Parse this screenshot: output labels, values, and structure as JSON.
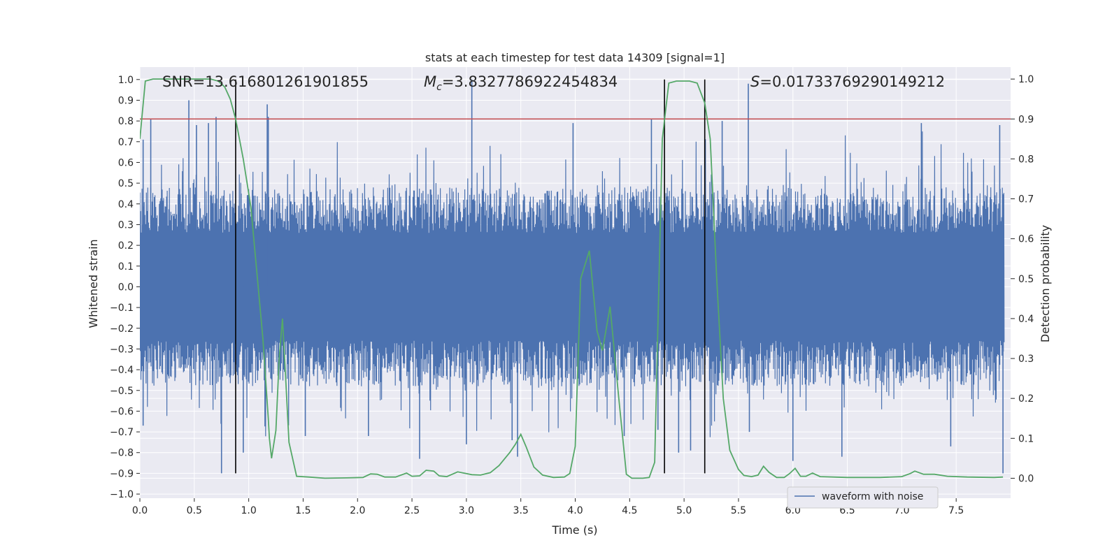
{
  "chart_data": {
    "type": "line",
    "title": "stats at each timestep for test data 14309 [signal=1]",
    "xlabel": "Time (s)",
    "ylabel": "Whitened strain",
    "y2label": "Detection probability",
    "xlim": [
      0.0,
      8.0
    ],
    "ylim": [
      -1.02,
      1.06
    ],
    "y2lim": [
      -0.05,
      1.03
    ],
    "xticks": [
      "0.0",
      "0.5",
      "1.0",
      "1.5",
      "2.0",
      "2.5",
      "3.0",
      "3.5",
      "4.0",
      "4.5",
      "5.0",
      "5.5",
      "6.0",
      "6.5",
      "7.0",
      "7.5"
    ],
    "xtick_values": [
      0.0,
      0.5,
      1.0,
      1.5,
      2.0,
      2.5,
      3.0,
      3.5,
      4.0,
      4.5,
      5.0,
      5.5,
      6.0,
      6.5,
      7.0,
      7.5
    ],
    "yticks": [
      "1.0",
      "0.9",
      "0.8",
      "0.7",
      "0.6",
      "0.5",
      "0.4",
      "0.3",
      "0.2",
      "0.1",
      "0.0",
      "−0.1",
      "−0.2",
      "−0.3",
      "−0.4",
      "−0.5",
      "−0.6",
      "−0.7",
      "−0.8",
      "−0.9",
      "−1.0"
    ],
    "ytick_values": [
      1.0,
      0.9,
      0.8,
      0.7,
      0.6,
      0.5,
      0.4,
      0.3,
      0.2,
      0.1,
      0.0,
      -0.1,
      -0.2,
      -0.3,
      -0.4,
      -0.5,
      -0.6,
      -0.7,
      -0.8,
      -0.9,
      -1.0
    ],
    "y2ticks": [
      "1.0",
      "0.9",
      "0.8",
      "0.7",
      "0.6",
      "0.5",
      "0.4",
      "0.3",
      "0.2",
      "0.1",
      "0.0"
    ],
    "y2tick_values": [
      1.0,
      0.9,
      0.8,
      0.7,
      0.6,
      0.5,
      0.4,
      0.3,
      0.2,
      0.1,
      0.0
    ],
    "grid": true,
    "legend": {
      "placement": "lower right",
      "label": "waveform with noise"
    },
    "annotations": {
      "snr": "SNR=13.616801261901855",
      "mc_symbol": "M",
      "mc_sub": "c",
      "mc_value": "=3.8327786922454834",
      "s_symbol": "S",
      "s_value": "=0.01733769290149212"
    },
    "threshold": {
      "value": 0.9,
      "axis": "right",
      "color": "#c44e52"
    },
    "vlines": [
      0.88,
      4.82,
      5.19
    ],
    "colors": {
      "waveform": "#4c72b0",
      "probability": "#55a868",
      "vline": "#000000",
      "background": "#eaeaf2"
    },
    "waveform_spikes": [
      {
        "t": 0.03,
        "v": 0.71
      },
      {
        "t": 0.03,
        "v": -0.67
      },
      {
        "t": 0.1,
        "v": 0.81
      },
      {
        "t": 0.45,
        "v": 0.9
      },
      {
        "t": 0.52,
        "v": 0.78
      },
      {
        "t": 0.63,
        "v": 0.79
      },
      {
        "t": 0.7,
        "v": 0.82
      },
      {
        "t": 0.75,
        "v": -0.9
      },
      {
        "t": 0.93,
        "v": 0.45
      },
      {
        "t": 0.95,
        "v": -0.8
      },
      {
        "t": 1.17,
        "v": 0.88
      },
      {
        "t": 1.18,
        "v": 0.82
      },
      {
        "t": 1.52,
        "v": -0.72
      },
      {
        "t": 2.1,
        "v": -0.72
      },
      {
        "t": 2.57,
        "v": -0.83
      },
      {
        "t": 3.0,
        "v": -0.76
      },
      {
        "t": 3.05,
        "v": 1.0
      },
      {
        "t": 3.42,
        "v": -0.74
      },
      {
        "t": 3.47,
        "v": -0.82
      },
      {
        "t": 3.98,
        "v": 0.79
      },
      {
        "t": 4.45,
        "v": -0.72
      },
      {
        "t": 4.7,
        "v": 0.81
      },
      {
        "t": 4.76,
        "v": -0.69
      },
      {
        "t": 4.95,
        "v": -0.8
      },
      {
        "t": 5.06,
        "v": -0.79
      },
      {
        "t": 5.35,
        "v": 0.8
      },
      {
        "t": 5.59,
        "v": 0.98
      },
      {
        "t": 5.6,
        "v": -0.7
      },
      {
        "t": 6.0,
        "v": -0.84
      },
      {
        "t": 6.45,
        "v": -0.82
      },
      {
        "t": 7.18,
        "v": 0.79
      },
      {
        "t": 7.45,
        "v": -0.77
      },
      {
        "t": 7.9,
        "v": 0.78
      },
      {
        "t": 7.93,
        "v": -0.9
      }
    ],
    "probability": [
      {
        "t": 0.0,
        "p": 0.85
      },
      {
        "t": 0.05,
        "p": 0.995
      },
      {
        "t": 0.12,
        "p": 1.0
      },
      {
        "t": 0.3,
        "p": 1.0
      },
      {
        "t": 0.5,
        "p": 1.0
      },
      {
        "t": 0.65,
        "p": 1.0
      },
      {
        "t": 0.72,
        "p": 0.995
      },
      {
        "t": 0.78,
        "p": 0.98
      },
      {
        "t": 0.83,
        "p": 0.95
      },
      {
        "t": 0.88,
        "p": 0.9
      },
      {
        "t": 0.95,
        "p": 0.8
      },
      {
        "t": 1.02,
        "p": 0.68
      },
      {
        "t": 1.08,
        "p": 0.5
      },
      {
        "t": 1.13,
        "p": 0.35
      },
      {
        "t": 1.18,
        "p": 0.15
      },
      {
        "t": 1.19,
        "p": 0.1
      },
      {
        "t": 1.21,
        "p": 0.05
      },
      {
        "t": 1.25,
        "p": 0.12
      },
      {
        "t": 1.28,
        "p": 0.3
      },
      {
        "t": 1.31,
        "p": 0.4
      },
      {
        "t": 1.33,
        "p": 0.3
      },
      {
        "t": 1.37,
        "p": 0.09
      },
      {
        "t": 1.44,
        "p": 0.005
      },
      {
        "t": 1.55,
        "p": 0.003
      },
      {
        "t": 1.7,
        "p": 0.0
      },
      {
        "t": 1.9,
        "p": 0.001
      },
      {
        "t": 2.05,
        "p": 0.002
      },
      {
        "t": 2.12,
        "p": 0.011
      },
      {
        "t": 2.18,
        "p": 0.01
      },
      {
        "t": 2.25,
        "p": 0.003
      },
      {
        "t": 2.35,
        "p": 0.003
      },
      {
        "t": 2.45,
        "p": 0.013
      },
      {
        "t": 2.5,
        "p": 0.005
      },
      {
        "t": 2.57,
        "p": 0.006
      },
      {
        "t": 2.63,
        "p": 0.02
      },
      {
        "t": 2.7,
        "p": 0.018
      },
      {
        "t": 2.75,
        "p": 0.006
      },
      {
        "t": 2.82,
        "p": 0.004
      },
      {
        "t": 2.92,
        "p": 0.016
      },
      {
        "t": 3.05,
        "p": 0.009
      },
      {
        "t": 3.13,
        "p": 0.008
      },
      {
        "t": 3.22,
        "p": 0.014
      },
      {
        "t": 3.3,
        "p": 0.032
      },
      {
        "t": 3.4,
        "p": 0.065
      },
      {
        "t": 3.45,
        "p": 0.085
      },
      {
        "t": 3.5,
        "p": 0.11
      },
      {
        "t": 3.55,
        "p": 0.078
      },
      {
        "t": 3.62,
        "p": 0.028
      },
      {
        "t": 3.7,
        "p": 0.008
      },
      {
        "t": 3.8,
        "p": 0.002
      },
      {
        "t": 3.9,
        "p": 0.003
      },
      {
        "t": 3.95,
        "p": 0.012
      },
      {
        "t": 4.0,
        "p": 0.08
      },
      {
        "t": 4.05,
        "p": 0.5
      },
      {
        "t": 4.13,
        "p": 0.57
      },
      {
        "t": 4.2,
        "p": 0.37
      },
      {
        "t": 4.25,
        "p": 0.32
      },
      {
        "t": 4.32,
        "p": 0.43
      },
      {
        "t": 4.4,
        "p": 0.2
      },
      {
        "t": 4.47,
        "p": 0.01
      },
      {
        "t": 4.52,
        "p": 0.0
      },
      {
        "t": 4.62,
        "p": 0.0
      },
      {
        "t": 4.68,
        "p": 0.002
      },
      {
        "t": 4.73,
        "p": 0.04
      },
      {
        "t": 4.77,
        "p": 0.5
      },
      {
        "t": 4.8,
        "p": 0.85
      },
      {
        "t": 4.86,
        "p": 0.99
      },
      {
        "t": 4.93,
        "p": 0.995
      },
      {
        "t": 5.05,
        "p": 0.995
      },
      {
        "t": 5.12,
        "p": 0.99
      },
      {
        "t": 5.19,
        "p": 0.94
      },
      {
        "t": 5.24,
        "p": 0.85
      },
      {
        "t": 5.3,
        "p": 0.5
      },
      {
        "t": 5.36,
        "p": 0.2
      },
      {
        "t": 5.42,
        "p": 0.07
      },
      {
        "t": 5.5,
        "p": 0.022
      },
      {
        "t": 5.55,
        "p": 0.007
      },
      {
        "t": 5.62,
        "p": 0.004
      },
      {
        "t": 5.68,
        "p": 0.008
      },
      {
        "t": 5.73,
        "p": 0.03
      },
      {
        "t": 5.78,
        "p": 0.015
      },
      {
        "t": 5.85,
        "p": 0.002
      },
      {
        "t": 5.92,
        "p": 0.002
      },
      {
        "t": 5.97,
        "p": 0.012
      },
      {
        "t": 6.02,
        "p": 0.025
      },
      {
        "t": 6.07,
        "p": 0.005
      },
      {
        "t": 6.12,
        "p": 0.005
      },
      {
        "t": 6.18,
        "p": 0.013
      },
      {
        "t": 6.25,
        "p": 0.004
      },
      {
        "t": 6.5,
        "p": 0.002
      },
      {
        "t": 6.8,
        "p": 0.002
      },
      {
        "t": 7.0,
        "p": 0.004
      },
      {
        "t": 7.08,
        "p": 0.012
      },
      {
        "t": 7.12,
        "p": 0.018
      },
      {
        "t": 7.2,
        "p": 0.01
      },
      {
        "t": 7.3,
        "p": 0.01
      },
      {
        "t": 7.42,
        "p": 0.005
      },
      {
        "t": 7.6,
        "p": 0.003
      },
      {
        "t": 7.85,
        "p": 0.002
      },
      {
        "t": 7.93,
        "p": 0.003
      }
    ]
  }
}
